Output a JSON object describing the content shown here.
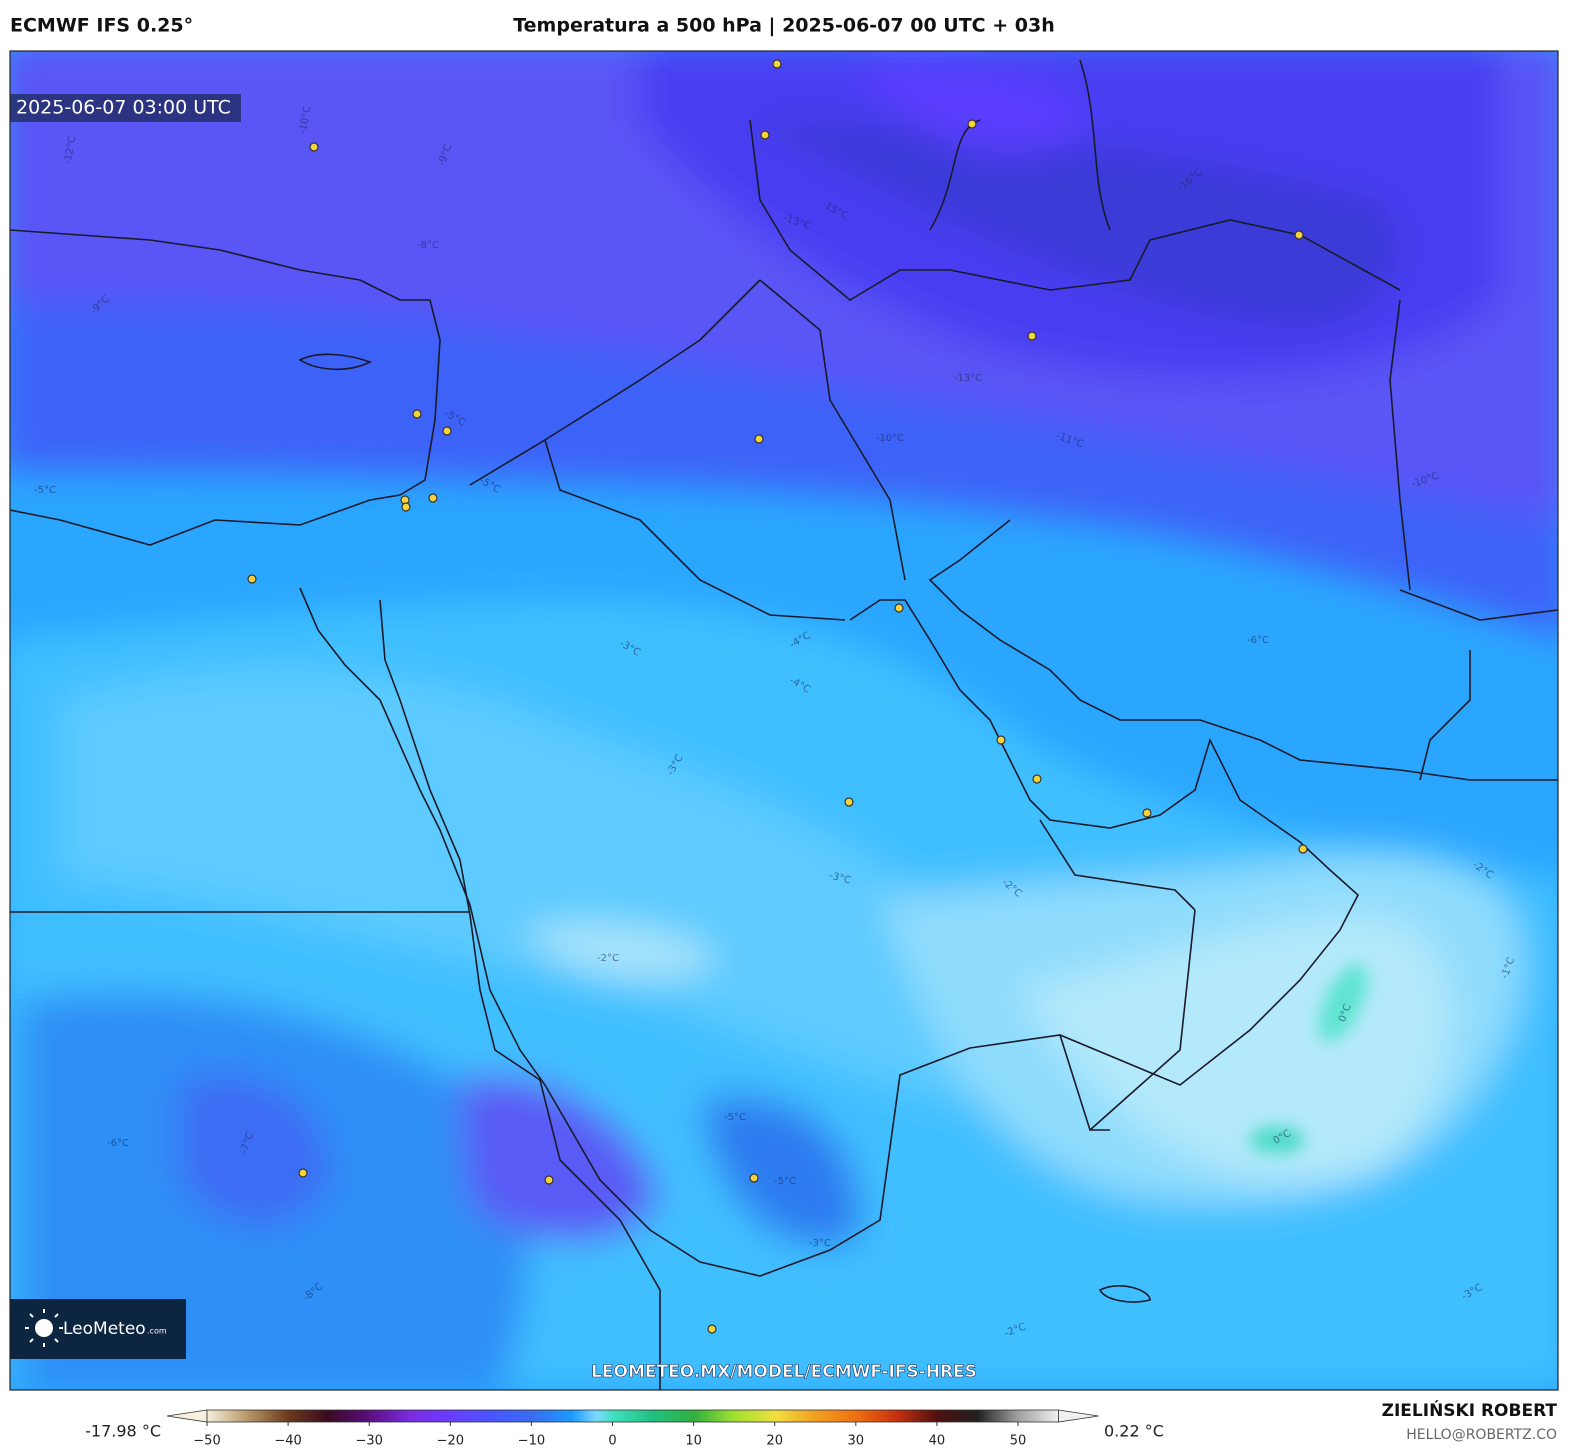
{
  "header": {
    "model": "ECMWF IFS 0.25°",
    "title": "Temperatura a 500 hPa | 2025-06-07 00 UTC + 03h"
  },
  "map": {
    "valid_time": "2025-06-07 03:00 UTC",
    "url": "LEOMETEO.MX/MODEL/ECMWF-IFS-HRES",
    "logo": {
      "name": "LeoMeteo",
      "suffix": ".com"
    },
    "contour_labels": [
      "-12°C",
      "-10°C",
      "-9°C",
      "-8°C",
      "-9°C",
      "-13°C",
      "-15°C",
      "-16°C",
      "-13°C",
      "-10°C",
      "-11°C",
      "-10°C",
      "-5°C",
      "-5°C",
      "-5°C",
      "-3°C",
      "-4°C",
      "-4°C",
      "-3°C",
      "-3°C",
      "-2°C",
      "-2°C",
      "-6°C",
      "-2°C",
      "-1°C",
      "0°C",
      "0°C",
      "-6°C",
      "-7°C",
      "-8°C",
      "-5°C",
      "-5°C",
      "-3°C",
      "-2°C",
      "-3°C"
    ]
  },
  "colorbar": {
    "min_label": "-17.98 °C",
    "max_label": "0.22 °C",
    "range": [
      -50,
      55
    ],
    "ticks": [
      {
        "value": -50,
        "label": "−50"
      },
      {
        "value": -40,
        "label": "−40"
      },
      {
        "value": -30,
        "label": "−30"
      },
      {
        "value": -20,
        "label": "−20"
      },
      {
        "value": -10,
        "label": "−10"
      },
      0,
      10,
      20,
      30,
      40,
      50
    ],
    "colors": [
      {
        "value": -50,
        "color": "#f6f0dc"
      },
      {
        "value": -45,
        "color": "#b89868"
      },
      {
        "value": -40,
        "color": "#6b3a1a"
      },
      {
        "value": -35,
        "color": "#3a0a22"
      },
      {
        "value": -30,
        "color": "#5c0d80"
      },
      {
        "value": -25,
        "color": "#7a2be0"
      },
      {
        "value": -20,
        "color": "#6a3cff"
      },
      {
        "value": -15,
        "color": "#4a55ff"
      },
      {
        "value": -10,
        "color": "#3a6cf0"
      },
      {
        "value": -5,
        "color": "#1a9aff"
      },
      {
        "value": -2,
        "color": "#7fd8ff"
      },
      {
        "value": 0,
        "color": "#40e0c0"
      },
      {
        "value": 5,
        "color": "#20c080"
      },
      {
        "value": 10,
        "color": "#30b040"
      },
      {
        "value": 15,
        "color": "#a0e030"
      },
      {
        "value": 20,
        "color": "#f0e040"
      },
      {
        "value": 25,
        "color": "#f0a020"
      },
      {
        "value": 30,
        "color": "#f07010"
      },
      {
        "value": 35,
        "color": "#c83010"
      },
      {
        "value": 40,
        "color": "#501010"
      },
      {
        "value": 45,
        "color": "#202020"
      },
      {
        "value": 50,
        "color": "#a0a0a0"
      },
      {
        "value": 55,
        "color": "#f0f0f0"
      }
    ]
  },
  "footer": {
    "author": "ZIELIŃSKI ROBERT",
    "email": "HELLO@ROBERTZ.CO"
  }
}
